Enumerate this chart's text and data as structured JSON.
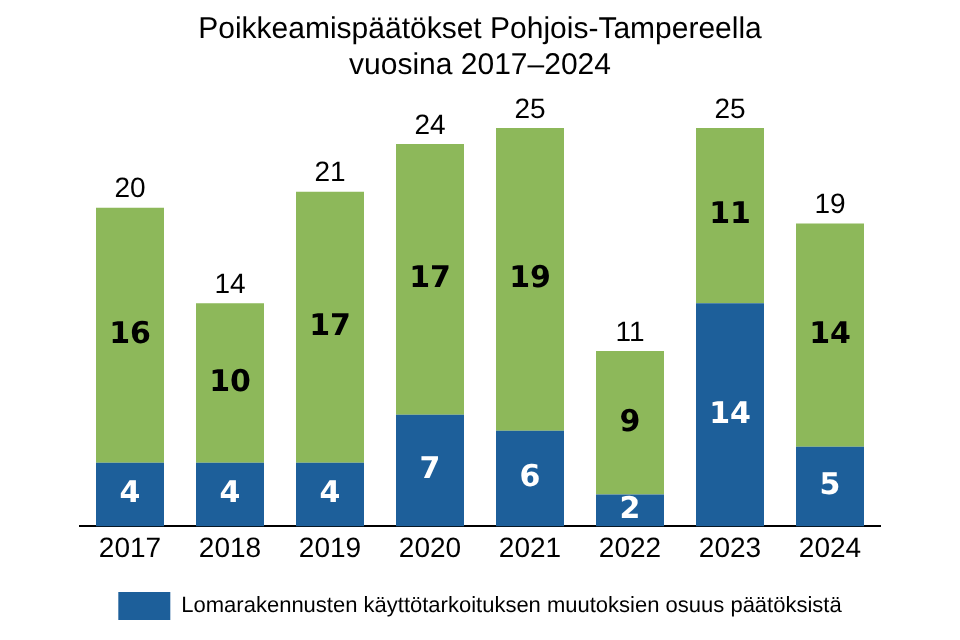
{
  "chart_data": {
    "type": "bar",
    "title": "Poikkeamispäätökset Pohjois-Tampereella\nvuosina 2017–2024",
    "categories": [
      "2017",
      "2018",
      "2019",
      "2020",
      "2021",
      "2022",
      "2023",
      "2024"
    ],
    "stacked": true,
    "data_labels": true,
    "legend": "bottom",
    "grid": false,
    "tick_labels": "x",
    "series": [
      {
        "name": "Lomarakennusten käyttötarkoituksen muutoksien osuus päätöksistä",
        "color": "#1d5f9a",
        "values": [
          4,
          4,
          4,
          7,
          6,
          2,
          14,
          5
        ]
      },
      {
        "color": "#8db85a",
        "values": [
          16,
          10,
          17,
          17,
          19,
          9,
          11,
          14
        ]
      }
    ],
    "totals": [
      "20",
      "14",
      "21",
      "24",
      "25",
      "11",
      "25",
      "19"
    ]
  }
}
